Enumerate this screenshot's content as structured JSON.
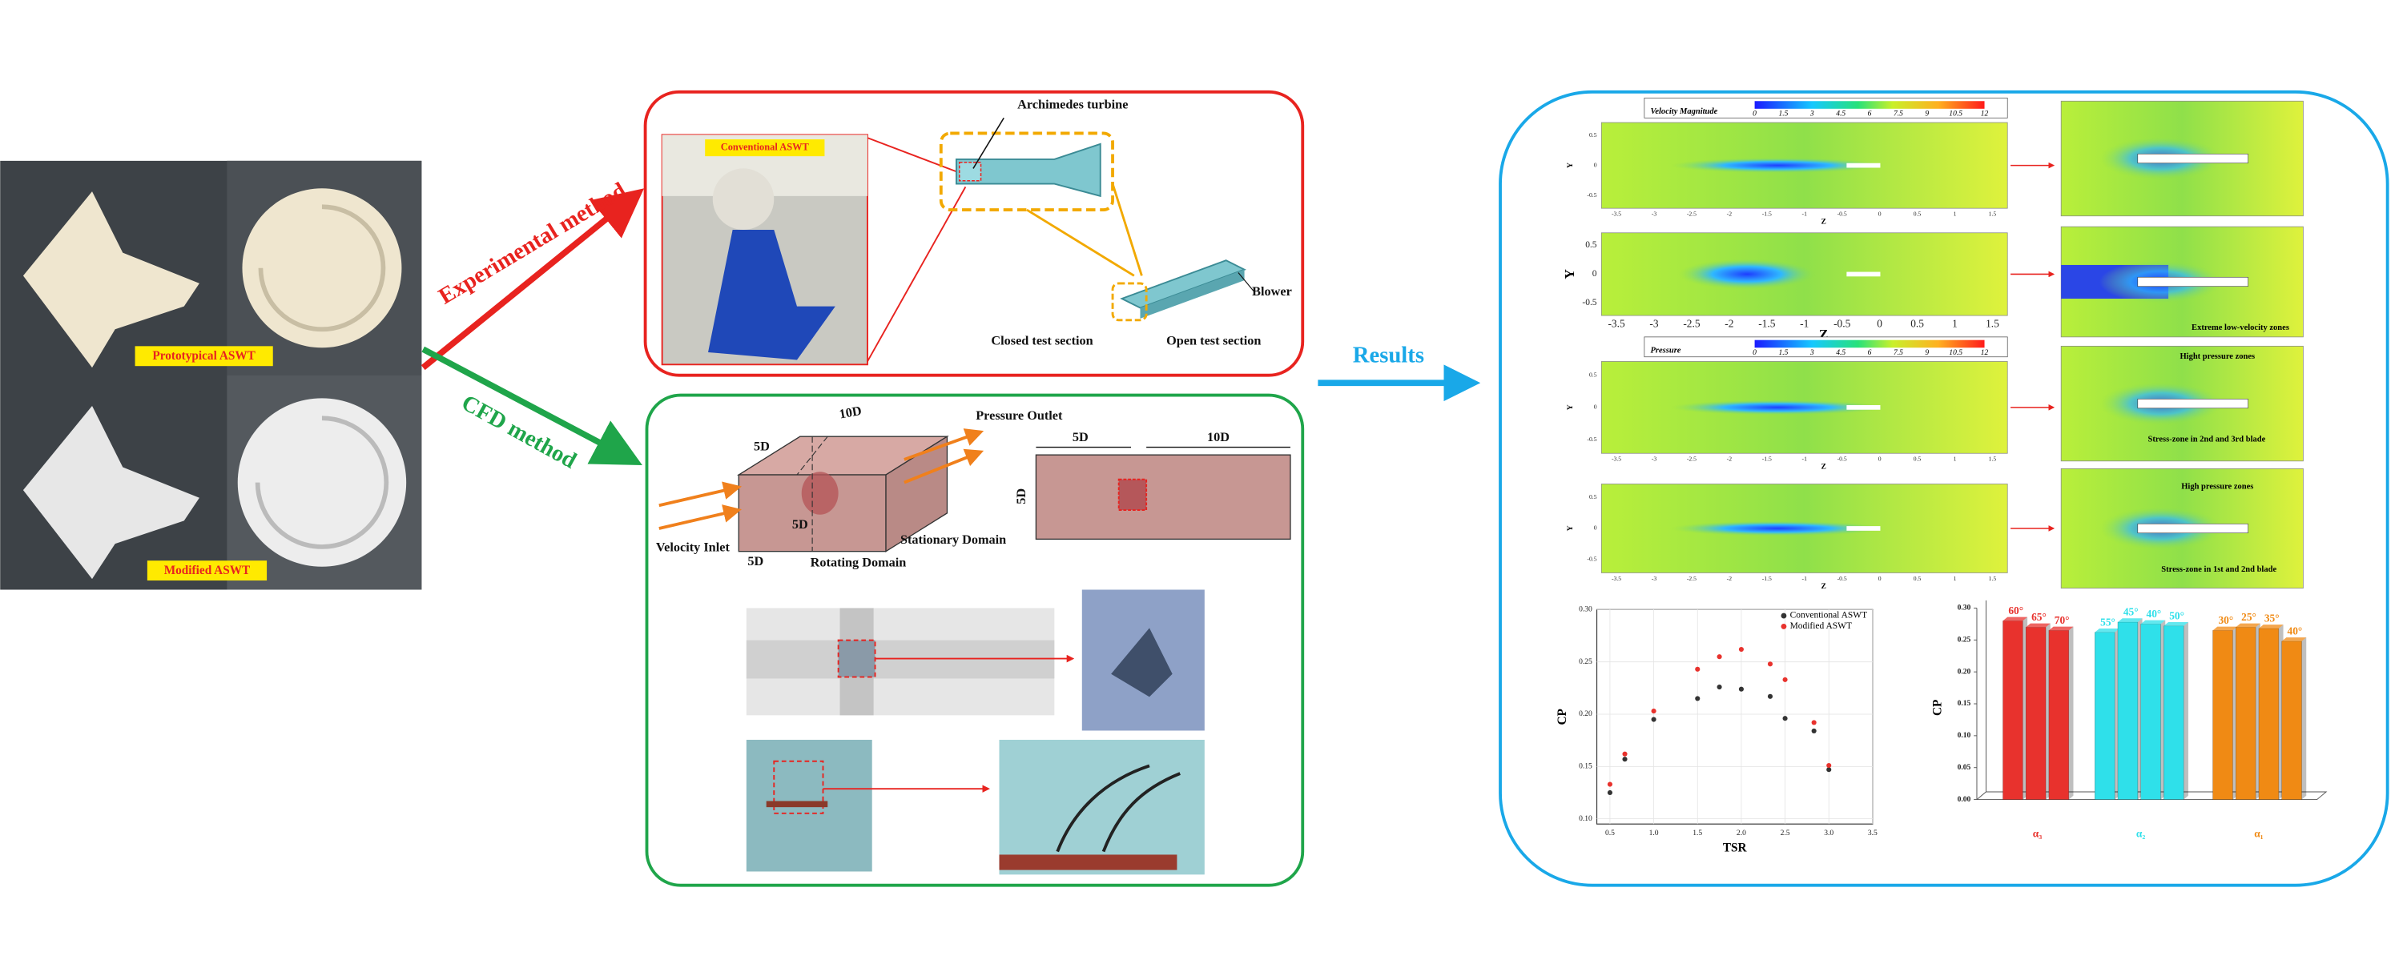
{
  "photos": {
    "prototype_label": "Prototypical   ASWT",
    "modified_label": "Modified   ASWT"
  },
  "experimental": {
    "title": "Experimental method",
    "photo_label": "Conventional  ASWT",
    "turbine": "Archimedes turbine",
    "blower": "Blower",
    "closed": "Closed test section",
    "open": "Open test section"
  },
  "cfd": {
    "title": "CFD method",
    "outlet": "Pressure  Outlet",
    "inlet": "Velocity   Inlet",
    "rotating": "Rotating Domain",
    "stationary": "Stationary Domain",
    "dim_10d": "10D",
    "dim_5d": "5D"
  },
  "results": {
    "title": "Results",
    "velocity_bar": {
      "title": "Velocity Magnitude",
      "ticks": [
        "0",
        "1.5",
        "3",
        "4.5",
        "6",
        "7.5",
        "9",
        "10.5",
        "12"
      ]
    },
    "pressure_bar": {
      "title": "Pressure",
      "ticks": [
        "0",
        "1.5",
        "3",
        "4.5",
        "6",
        "7.5",
        "9",
        "10.5",
        "12"
      ]
    },
    "contour_xticks": [
      -3.5,
      -3,
      -2.5,
      -2,
      -1.5,
      -1,
      -0.5,
      0,
      0.5,
      1,
      1.5
    ],
    "contour_yticks": [
      0.5,
      0,
      -0.5
    ],
    "axis_y": "Y",
    "axis_z": "Z",
    "low_velocity": "Extreme low-velocity zones",
    "high_pressure_1": "Hight pressure zones",
    "stress_1": "Stress-zone in 2nd and 3rd blade",
    "high_pressure_2": "High pressure zones",
    "stress_2": "Stress-zone in 1st and 2nd blade"
  },
  "chart_data": [
    {
      "type": "scatter",
      "xlabel": "TSR",
      "ylabel": "CP",
      "x": [
        0.5,
        0.67,
        1.0,
        1.5,
        1.75,
        2.0,
        2.33,
        2.5,
        2.83,
        3.0
      ],
      "series": [
        {
          "name": "Conventional ASWT",
          "color": "#333333",
          "values": [
            0.125,
            0.157,
            0.195,
            0.215,
            0.226,
            0.224,
            0.217,
            0.196,
            0.184,
            0.147
          ]
        },
        {
          "name": "Modified ASWT",
          "color": "#e8322d",
          "values": [
            0.133,
            0.162,
            0.203,
            0.243,
            0.255,
            0.262,
            0.248,
            0.233,
            0.192,
            0.151
          ]
        }
      ],
      "xlim": [
        0.35,
        3.5
      ],
      "ylim": [
        0.095,
        0.3
      ],
      "xticks": [
        0.5,
        {
          "value": 1,
          "label": "1.0"
        },
        1.5,
        {
          "value": 2,
          "label": "2.0"
        },
        2.5,
        {
          "value": 3,
          "label": "3.0"
        },
        3.5
      ],
      "yticks": [
        {
          "value": 0.1,
          "label": "0.10"
        },
        0.15,
        {
          "value": 0.2,
          "label": "0.20"
        },
        0.25,
        {
          "value": 0.3,
          "label": "0.30"
        }
      ],
      "grid": true,
      "legend": "upper-right"
    },
    {
      "type": "bar3d",
      "ylabel": "CP",
      "groups": [
        {
          "name": "α₃",
          "color": "#e8322d",
          "categories": [
            "60°",
            "65°",
            "70°"
          ],
          "values": [
            0.28,
            0.27,
            0.265
          ]
        },
        {
          "name": "α₂",
          "color": "#2fe0ea",
          "categories": [
            "55°",
            "45°",
            "40°",
            "50°"
          ],
          "values": [
            0.262,
            0.278,
            0.275,
            0.272
          ]
        },
        {
          "name": "α₁",
          "color": "#f08a14",
          "categories": [
            "30°",
            "25°",
            "35°",
            "40°"
          ],
          "values": [
            0.265,
            0.27,
            0.268,
            0.248
          ]
        }
      ],
      "ylim": [
        0,
        0.3
      ],
      "yticks": [
        {
          "value": 0,
          "label": "0.00"
        },
        0.05,
        {
          "value": 0.1,
          "label": "0.10"
        },
        0.15,
        {
          "value": 0.2,
          "label": "0.20"
        },
        0.25,
        {
          "value": 0.3,
          "label": "0.30"
        }
      ]
    }
  ]
}
